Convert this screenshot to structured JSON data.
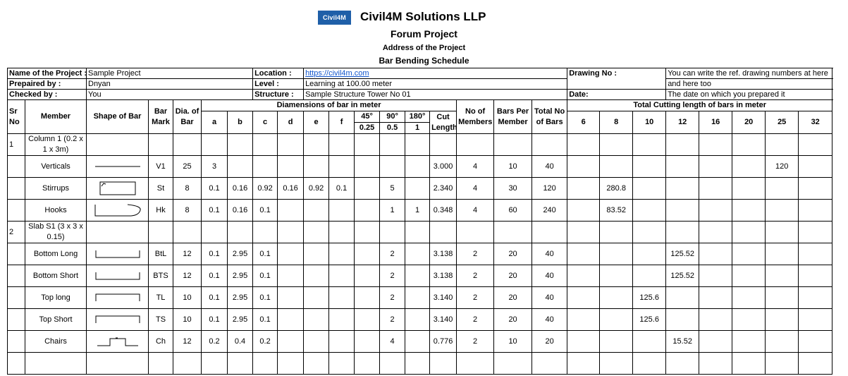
{
  "header": {
    "logo_text": "Civil4M",
    "company": "Civil4M Solutions LLP",
    "project": "Forum Project",
    "address": "Address of the Project",
    "doc_title": "Bar Bending Schedule"
  },
  "info": {
    "project_name_label": "Name of the Project :",
    "project_name": "Sample Project",
    "prepared_by_label": "Prepaired by :",
    "prepared_by": "Dnyan",
    "checked_by_label": "Checked by :",
    "checked_by": "You",
    "location_label": "Location :",
    "location": "https://civil4m.com",
    "level_label": "Level :",
    "level": "Learning at 100.00 meter",
    "structure_label": "Structure :",
    "structure": "Sample Structure Tower No 01",
    "drawing_no_label": "Drawing No :",
    "drawing_no_1": "You can write the ref. drawing numbers at here",
    "drawing_no_2": "and here too",
    "date_label": "Date:",
    "date": "The date on which you prepared it"
  },
  "columns": {
    "sr_no": "Sr No",
    "member": "Member",
    "shape": "Shape of Bar",
    "bar_mark": "Bar Mark",
    "dia": "Dia. of Bar",
    "dimensions_group": "Diamensions of bar in meter",
    "dims": [
      "a",
      "b",
      "c",
      "d",
      "e",
      "f"
    ],
    "bends": [
      {
        "angle": "45°",
        "value": "0.25"
      },
      {
        "angle": "90°",
        "value": "0.5"
      },
      {
        "angle": "180°",
        "value": "1"
      }
    ],
    "cut_length": "Cut Length",
    "no_members": "No of Members",
    "bars_per_member": "Bars Per Member",
    "total_bars": "Total No of Bars",
    "cutting_group": "Total Cutting length of bars in meter",
    "diameters": [
      "6",
      "8",
      "10",
      "12",
      "16",
      "20",
      "25",
      "32"
    ]
  },
  "rows": [
    {
      "type": "group",
      "sr": "1",
      "member": "Column 1 (0.2 x 1 x 3m)"
    },
    {
      "type": "bar",
      "member": "Verticals",
      "shape": "straight",
      "mark": "V1",
      "dia": "25",
      "dims": [
        "3",
        "",
        "",
        "",
        "",
        ""
      ],
      "bends": [
        "",
        "",
        ""
      ],
      "cut": "3.000",
      "members": "4",
      "per_member": "10",
      "total": "40",
      "lengths": [
        "",
        "",
        "",
        "",
        "",
        "",
        "120",
        ""
      ]
    },
    {
      "type": "bar",
      "member": "Stirrups",
      "shape": "stirrup",
      "mark": "St",
      "dia": "8",
      "dims": [
        "0.1",
        "0.16",
        "0.92",
        "0.16",
        "0.92",
        "0.1"
      ],
      "bends": [
        "",
        "5",
        ""
      ],
      "cut": "2.340",
      "members": "4",
      "per_member": "30",
      "total": "120",
      "lengths": [
        "",
        "280.8",
        "",
        "",
        "",
        "",
        "",
        ""
      ]
    },
    {
      "type": "bar",
      "member": "Hooks",
      "shape": "hook",
      "mark": "Hk",
      "dia": "8",
      "dims": [
        "0.1",
        "0.16",
        "0.1",
        "",
        "",
        ""
      ],
      "bends": [
        "",
        "1",
        "1"
      ],
      "cut": "0.348",
      "members": "4",
      "per_member": "60",
      "total": "240",
      "lengths": [
        "",
        "83.52",
        "",
        "",
        "",
        "",
        "",
        ""
      ]
    },
    {
      "type": "group",
      "sr": "2",
      "member": "Slab S1 (3 x 3 x 0.15)"
    },
    {
      "type": "bar",
      "member": "Bottom Long",
      "shape": "u-up",
      "mark": "BtL",
      "dia": "12",
      "dims": [
        "0.1",
        "2.95",
        "0.1",
        "",
        "",
        ""
      ],
      "bends": [
        "",
        "2",
        ""
      ],
      "cut": "3.138",
      "members": "2",
      "per_member": "20",
      "total": "40",
      "lengths": [
        "",
        "",
        "",
        "125.52",
        "",
        "",
        "",
        ""
      ]
    },
    {
      "type": "bar",
      "member": "Bottom Short",
      "shape": "u-up",
      "mark": "BTS",
      "dia": "12",
      "dims": [
        "0.1",
        "2.95",
        "0.1",
        "",
        "",
        ""
      ],
      "bends": [
        "",
        "2",
        ""
      ],
      "cut": "3.138",
      "members": "2",
      "per_member": "20",
      "total": "40",
      "lengths": [
        "",
        "",
        "",
        "125.52",
        "",
        "",
        "",
        ""
      ]
    },
    {
      "type": "bar",
      "member": "Top long",
      "shape": "u-down",
      "mark": "TL",
      "dia": "10",
      "dims": [
        "0.1",
        "2.95",
        "0.1",
        "",
        "",
        ""
      ],
      "bends": [
        "",
        "2",
        ""
      ],
      "cut": "3.140",
      "members": "2",
      "per_member": "20",
      "total": "40",
      "lengths": [
        "",
        "",
        "125.6",
        "",
        "",
        "",
        "",
        ""
      ]
    },
    {
      "type": "bar",
      "member": "Top Short",
      "shape": "u-down",
      "mark": "TS",
      "dia": "10",
      "dims": [
        "0.1",
        "2.95",
        "0.1",
        "",
        "",
        ""
      ],
      "bends": [
        "",
        "2",
        ""
      ],
      "cut": "3.140",
      "members": "2",
      "per_member": "20",
      "total": "40",
      "lengths": [
        "",
        "",
        "125.6",
        "",
        "",
        "",
        "",
        ""
      ]
    },
    {
      "type": "bar",
      "member": "Chairs",
      "shape": "chair",
      "mark": "Ch",
      "dia": "12",
      "dims": [
        "0.2",
        "0.4",
        "0.2",
        "",
        "",
        ""
      ],
      "bends": [
        "",
        "4",
        ""
      ],
      "cut": "0.776",
      "members": "2",
      "per_member": "10",
      "total": "20",
      "lengths": [
        "",
        "",
        "",
        "15.52",
        "",
        "",
        "",
        ""
      ]
    }
  ]
}
